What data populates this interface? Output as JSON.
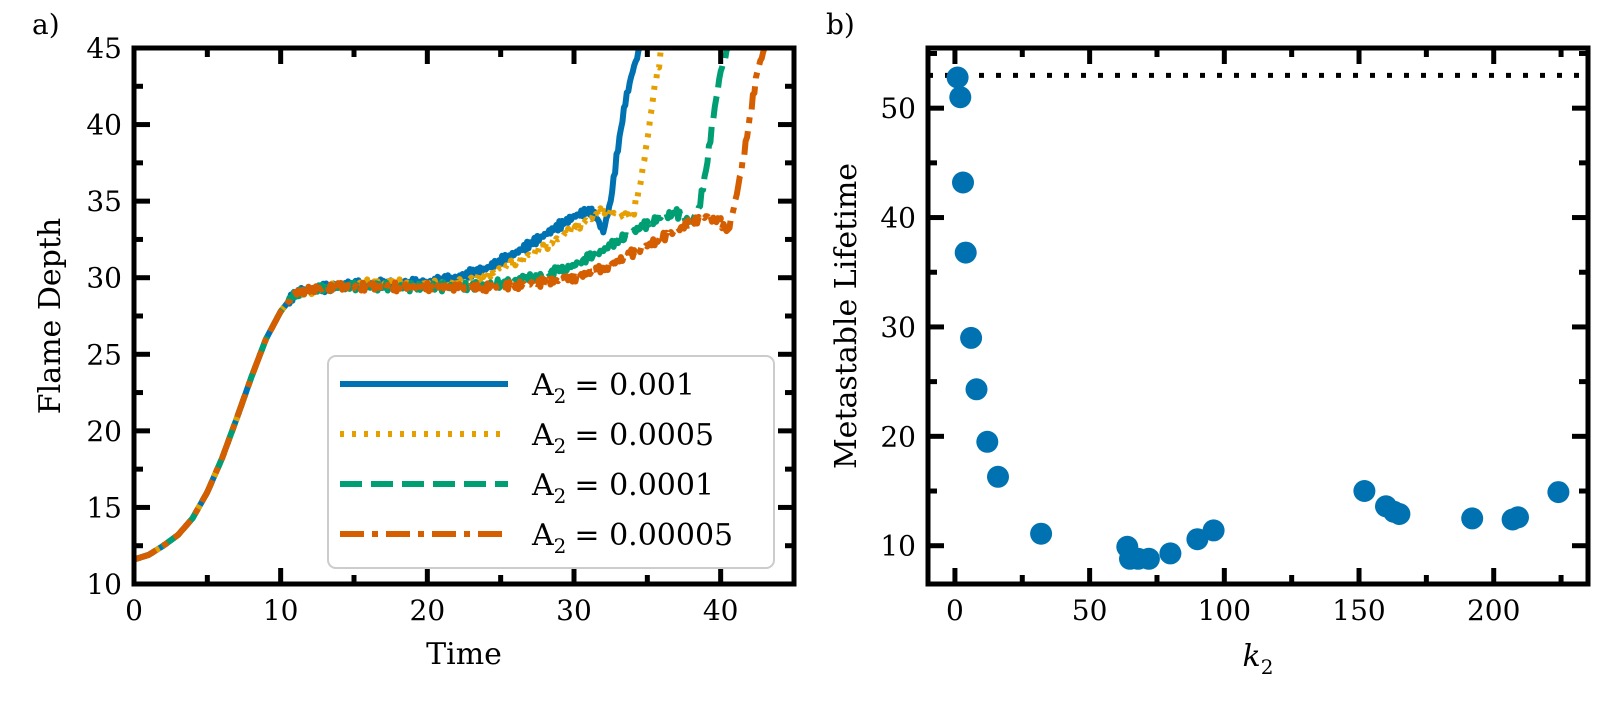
{
  "chart_data": [
    {
      "type": "line",
      "panel_label": "a)",
      "xlabel": "Time",
      "ylabel": "Flame Depth",
      "xlim": [
        0,
        45
      ],
      "ylim": [
        10,
        45
      ],
      "xticks": [
        0,
        10,
        20,
        30,
        40
      ],
      "yticks": [
        10,
        15,
        20,
        25,
        30,
        35,
        40,
        45
      ],
      "legend_position": "lower-right",
      "series": [
        {
          "name": "A2 = 0.001",
          "legend_prefix": "A",
          "legend_sub": "2",
          "legend_value": "= 0.001",
          "color": "#0072B2",
          "dash": "solid",
          "points": [
            [
              0,
              11.6
            ],
            [
              1,
              11.9
            ],
            [
              2,
              12.5
            ],
            [
              3,
              13.2
            ],
            [
              4,
              14.3
            ],
            [
              5,
              16.0
            ],
            [
              6,
              18.2
            ],
            [
              7,
              20.8
            ],
            [
              8,
              23.5
            ],
            [
              9,
              26.0
            ],
            [
              10,
              27.8
            ],
            [
              11,
              29.0
            ],
            [
              12,
              29.2
            ],
            [
              14,
              29.5
            ],
            [
              16,
              29.6
            ],
            [
              18,
              29.6
            ],
            [
              20,
              29.7
            ],
            [
              22,
              30.0
            ],
            [
              24,
              30.6
            ],
            [
              26,
              31.6
            ],
            [
              28,
              32.8
            ],
            [
              30,
              34.0
            ],
            [
              31,
              34.4
            ],
            [
              31.5,
              34.0
            ],
            [
              32,
              33.0
            ],
            [
              32.5,
              35.0
            ],
            [
              33,
              38.5
            ],
            [
              33.5,
              41.5
            ],
            [
              34,
              43.5
            ],
            [
              34.5,
              45.0
            ]
          ]
        },
        {
          "name": "A2 = 0.0005",
          "legend_prefix": "A",
          "legend_sub": "2",
          "legend_value": "= 0.0005",
          "color": "#E69F00",
          "dash": "dotted",
          "points": [
            [
              0,
              11.6
            ],
            [
              1,
              11.9
            ],
            [
              2,
              12.5
            ],
            [
              3,
              13.2
            ],
            [
              4,
              14.3
            ],
            [
              5,
              16.0
            ],
            [
              6,
              18.2
            ],
            [
              7,
              20.8
            ],
            [
              8,
              23.5
            ],
            [
              9,
              26.0
            ],
            [
              10,
              27.8
            ],
            [
              11,
              29.0
            ],
            [
              12,
              29.2
            ],
            [
              14,
              29.5
            ],
            [
              16,
              29.6
            ],
            [
              18,
              29.6
            ],
            [
              20,
              29.6
            ],
            [
              22,
              29.7
            ],
            [
              24,
              30.2
            ],
            [
              26,
              31.0
            ],
            [
              28,
              32.0
            ],
            [
              30,
              33.2
            ],
            [
              32,
              34.4
            ],
            [
              33,
              34.0
            ],
            [
              34,
              34.0
            ],
            [
              34.5,
              36.0
            ],
            [
              35,
              39.0
            ],
            [
              35.5,
              42.5
            ],
            [
              36,
              45.0
            ]
          ]
        },
        {
          "name": "A2 = 0.0001",
          "legend_prefix": "A",
          "legend_sub": "2",
          "legend_value": "= 0.0001",
          "color": "#009E73",
          "dash": "dashed",
          "points": [
            [
              0,
              11.6
            ],
            [
              1,
              11.9
            ],
            [
              2,
              12.5
            ],
            [
              3,
              13.2
            ],
            [
              4,
              14.3
            ],
            [
              5,
              16.0
            ],
            [
              6,
              18.2
            ],
            [
              7,
              20.8
            ],
            [
              8,
              23.5
            ],
            [
              9,
              26.0
            ],
            [
              10,
              27.8
            ],
            [
              11,
              29.0
            ],
            [
              12,
              29.2
            ],
            [
              14,
              29.4
            ],
            [
              16,
              29.4
            ],
            [
              18,
              29.4
            ],
            [
              20,
              29.4
            ],
            [
              22,
              29.4
            ],
            [
              24,
              29.5
            ],
            [
              26,
              29.8
            ],
            [
              28,
              30.2
            ],
            [
              30,
              30.8
            ],
            [
              32,
              31.8
            ],
            [
              34,
              33.0
            ],
            [
              36,
              34.0
            ],
            [
              37,
              34.2
            ],
            [
              38,
              33.6
            ],
            [
              38.5,
              34.4
            ],
            [
              39,
              37.0
            ],
            [
              39.5,
              40.5
            ],
            [
              40,
              43.5
            ],
            [
              40.5,
              45.0
            ]
          ]
        },
        {
          "name": "A2 = 0.00005",
          "legend_prefix": "A",
          "legend_sub": "2",
          "legend_value": "= 0.00005",
          "color": "#D55E00",
          "dash": "dashdot",
          "points": [
            [
              0,
              11.6
            ],
            [
              1,
              11.9
            ],
            [
              2,
              12.5
            ],
            [
              3,
              13.2
            ],
            [
              4,
              14.3
            ],
            [
              5,
              16.0
            ],
            [
              6,
              18.2
            ],
            [
              7,
              20.8
            ],
            [
              8,
              23.5
            ],
            [
              9,
              26.0
            ],
            [
              10,
              27.8
            ],
            [
              11,
              29.0
            ],
            [
              12,
              29.2
            ],
            [
              14,
              29.4
            ],
            [
              16,
              29.4
            ],
            [
              18,
              29.4
            ],
            [
              20,
              29.4
            ],
            [
              22,
              29.4
            ],
            [
              24,
              29.4
            ],
            [
              26,
              29.5
            ],
            [
              28,
              29.7
            ],
            [
              30,
              30.0
            ],
            [
              32,
              30.6
            ],
            [
              34,
              31.6
            ],
            [
              36,
              32.6
            ],
            [
              38,
              33.6
            ],
            [
              39,
              34.0
            ],
            [
              40,
              33.6
            ],
            [
              40.5,
              33.0
            ],
            [
              41,
              35.0
            ],
            [
              41.5,
              37.5
            ],
            [
              42,
              40.5
            ],
            [
              42.5,
              43.5
            ],
            [
              43,
              45.0
            ]
          ]
        }
      ]
    },
    {
      "type": "scatter",
      "panel_label": "b)",
      "xlabel_main": "k",
      "xlabel_sub": "2",
      "ylabel": "Metastable Lifetime",
      "xlim": [
        -10,
        235
      ],
      "ylim": [
        6.5,
        55.5
      ],
      "xticks": [
        0,
        50,
        100,
        150,
        200
      ],
      "yticks": [
        10,
        20,
        30,
        40,
        50
      ],
      "reference_line": {
        "y": 53,
        "style": "dotted",
        "color": "#000000"
      },
      "color": "#0072B2",
      "points": [
        [
          1,
          52.8
        ],
        [
          2,
          51.0
        ],
        [
          3,
          43.2
        ],
        [
          4,
          36.8
        ],
        [
          6,
          29.0
        ],
        [
          8,
          24.3
        ],
        [
          12,
          19.5
        ],
        [
          16,
          16.3
        ],
        [
          32,
          11.1
        ],
        [
          64,
          9.9
        ],
        [
          65,
          8.8
        ],
        [
          68,
          8.8
        ],
        [
          72,
          8.8
        ],
        [
          80,
          9.3
        ],
        [
          90,
          10.6
        ],
        [
          96,
          11.4
        ],
        [
          152,
          15.0
        ],
        [
          160,
          13.6
        ],
        [
          163,
          13.1
        ],
        [
          165,
          12.9
        ],
        [
          192,
          12.5
        ],
        [
          207,
          12.4
        ],
        [
          209,
          12.6
        ],
        [
          224,
          14.9
        ]
      ]
    }
  ]
}
